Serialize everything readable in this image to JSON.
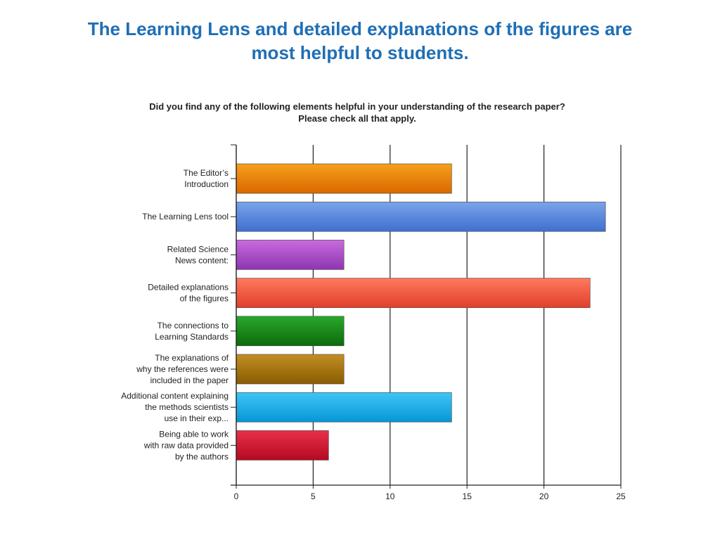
{
  "slide": {
    "title_lines": [
      "The Learning Lens and detailed explanations of the figures are",
      "most helpful to students."
    ]
  },
  "chart_data": {
    "type": "bar",
    "orientation": "horizontal",
    "title_lines": [
      "Did you find any of the following elements helpful in your understanding of the research paper?",
      "Please check all that apply."
    ],
    "categories": [
      [
        "The Editor’s",
        "Introduction"
      ],
      [
        "The Learning Lens tool"
      ],
      [
        "Related Science",
        "News content:"
      ],
      [
        "Detailed explanations",
        "of the figures"
      ],
      [
        "The connections to",
        "Learning Standards"
      ],
      [
        "The explanations of",
        "why the references were",
        "included in the paper"
      ],
      [
        "Additional content explaining",
        "the methods scientists",
        "use in their exp..."
      ],
      [
        "Being able to work",
        "with raw data provided",
        "by the authors"
      ]
    ],
    "values": [
      14,
      24,
      7,
      23,
      7,
      7,
      14,
      6
    ],
    "colors": [
      [
        "#f6a01a",
        "#d96800"
      ],
      [
        "#7aa4ea",
        "#3f6fcf"
      ],
      [
        "#c86bdd",
        "#8e35b0"
      ],
      [
        "#ff7a5e",
        "#e0402a"
      ],
      [
        "#2aa82a",
        "#0c6a0c"
      ],
      [
        "#c28f24",
        "#8a5c00"
      ],
      [
        "#3fc6f6",
        "#0795d6"
      ],
      [
        "#e8304a",
        "#b30a22"
      ]
    ],
    "xlim": [
      0,
      25
    ],
    "xticks": [
      0,
      5,
      10,
      15,
      20,
      25
    ],
    "grid": true,
    "legend": "none"
  }
}
